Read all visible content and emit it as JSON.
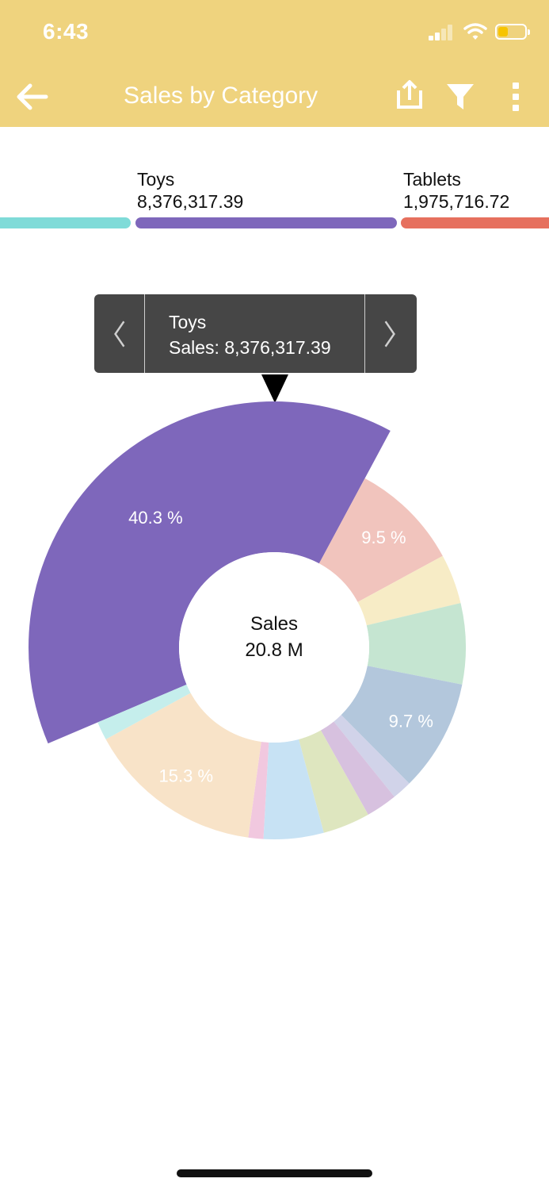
{
  "status_bar": {
    "time": "6:43"
  },
  "header": {
    "title": "Sales by Category",
    "back_icon": "arrow-left-icon",
    "share_icon": "share-icon",
    "filter_icon": "filter-icon",
    "more_icon": "more-vertical-icon",
    "background": "#efd37e"
  },
  "legend": {
    "items": [
      {
        "name": "",
        "value": "",
        "color": "#7fdbd8"
      },
      {
        "name": "Toys",
        "value": "8,376,317.39",
        "color": "#7e67bb"
      },
      {
        "name": "Tablets",
        "value": "1,975,716.72",
        "color": "#e6705e"
      }
    ]
  },
  "tooltip": {
    "name": "Toys",
    "value_text": "Sales: 8,376,317.39",
    "prev_icon": "chevron-left-icon",
    "next_icon": "chevron-right-icon"
  },
  "chart_data": {
    "type": "pie",
    "center_title": "Sales",
    "center_value": "20.8 M",
    "selected": "Toys",
    "slices": [
      {
        "name": "Toys",
        "share": 40.3,
        "label": "40.3 %",
        "color": "#7e67bb"
      },
      {
        "name": "Tablets",
        "share": 9.5,
        "label": "9.5 %",
        "color": "#f1c4bd"
      },
      {
        "name": "",
        "share": 4.3,
        "label": "",
        "color": "#f7ecc6"
      },
      {
        "name": "",
        "share": 7.0,
        "label": "",
        "color": "#c5e5d1"
      },
      {
        "name": "",
        "share": 9.7,
        "label": "9.7 %",
        "color": "#b3c7dc"
      },
      {
        "name": "",
        "share": 1.7,
        "label": "",
        "color": "#d1d3e9"
      },
      {
        "name": "",
        "share": 2.7,
        "label": "",
        "color": "#d7c1df"
      },
      {
        "name": "",
        "share": 4.1,
        "label": "",
        "color": "#dee6bf"
      },
      {
        "name": "",
        "share": 5.2,
        "label": "",
        "color": "#c7e2f4"
      },
      {
        "name": "",
        "share": 1.3,
        "label": "",
        "color": "#f1c8df"
      },
      {
        "name": "",
        "share": 15.3,
        "label": "15.3 %",
        "color": "#f8e3c8"
      },
      {
        "name": "",
        "share": 1.6,
        "label": "",
        "color": "#c5eeec"
      }
    ]
  }
}
